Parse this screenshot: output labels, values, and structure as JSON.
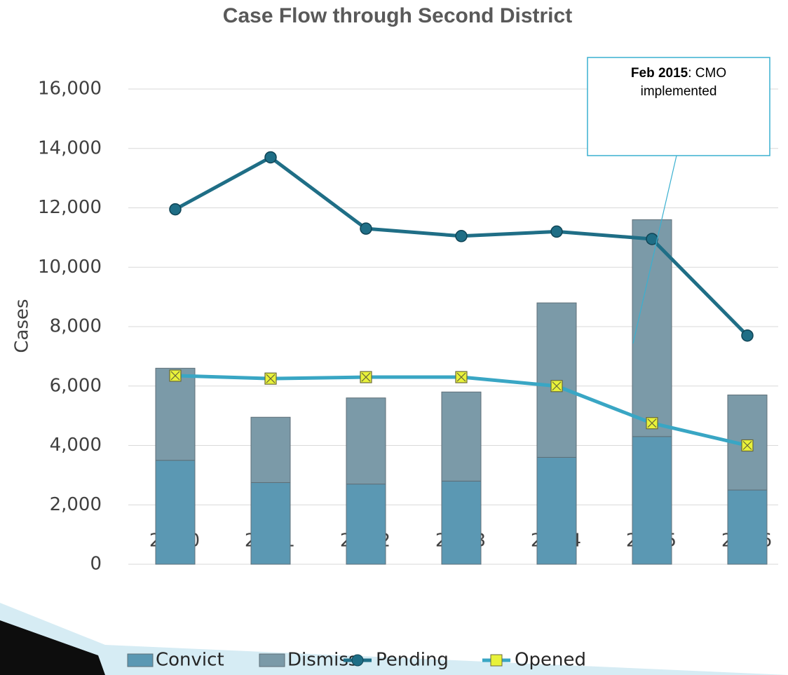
{
  "chart_data": {
    "type": "bar",
    "title": "Case Flow through Second District",
    "y_label": "Cases",
    "categories": [
      "2010",
      "2011",
      "2012",
      "2013",
      "2014",
      "2015",
      "2016"
    ],
    "series": [
      {
        "name": "Convict",
        "type": "bar",
        "color": "#5b98b3",
        "values": [
          3500,
          2750,
          2700,
          2800,
          3600,
          4300,
          2500
        ]
      },
      {
        "name": "Dismiss",
        "type": "bar",
        "color": "#7b9aa8",
        "values": [
          3100,
          2200,
          2900,
          3000,
          5200,
          7300,
          3200
        ]
      },
      {
        "name": "Pending",
        "type": "line",
        "color": "#1f6e86",
        "marker": "circle",
        "values": [
          11950,
          13700,
          11300,
          11050,
          11200,
          10950,
          7700
        ]
      },
      {
        "name": "Opened",
        "type": "line",
        "color": "#39a6c4",
        "marker": "square",
        "values": [
          6350,
          6250,
          6300,
          6300,
          6000,
          4750,
          4000
        ]
      }
    ],
    "stacked": true,
    "ylim": [
      0,
      16000
    ],
    "yticks": [
      {
        "value": 0,
        "label": "0"
      },
      {
        "value": 2000,
        "label": "2,000"
      },
      {
        "value": 4000,
        "label": "4,000"
      },
      {
        "value": 6000,
        "label": "6,000"
      },
      {
        "value": 8000,
        "label": "8,000"
      },
      {
        "value": 10000,
        "label": "10,000"
      },
      {
        "value": 12000,
        "label": "12,000"
      },
      {
        "value": 14000,
        "label": "14,000"
      },
      {
        "value": 16000,
        "label": "16,000"
      }
    ],
    "grid": true,
    "legend": "bottom",
    "annotation": {
      "bold": "Feb 2015",
      "text": ": CMO implemented"
    }
  }
}
